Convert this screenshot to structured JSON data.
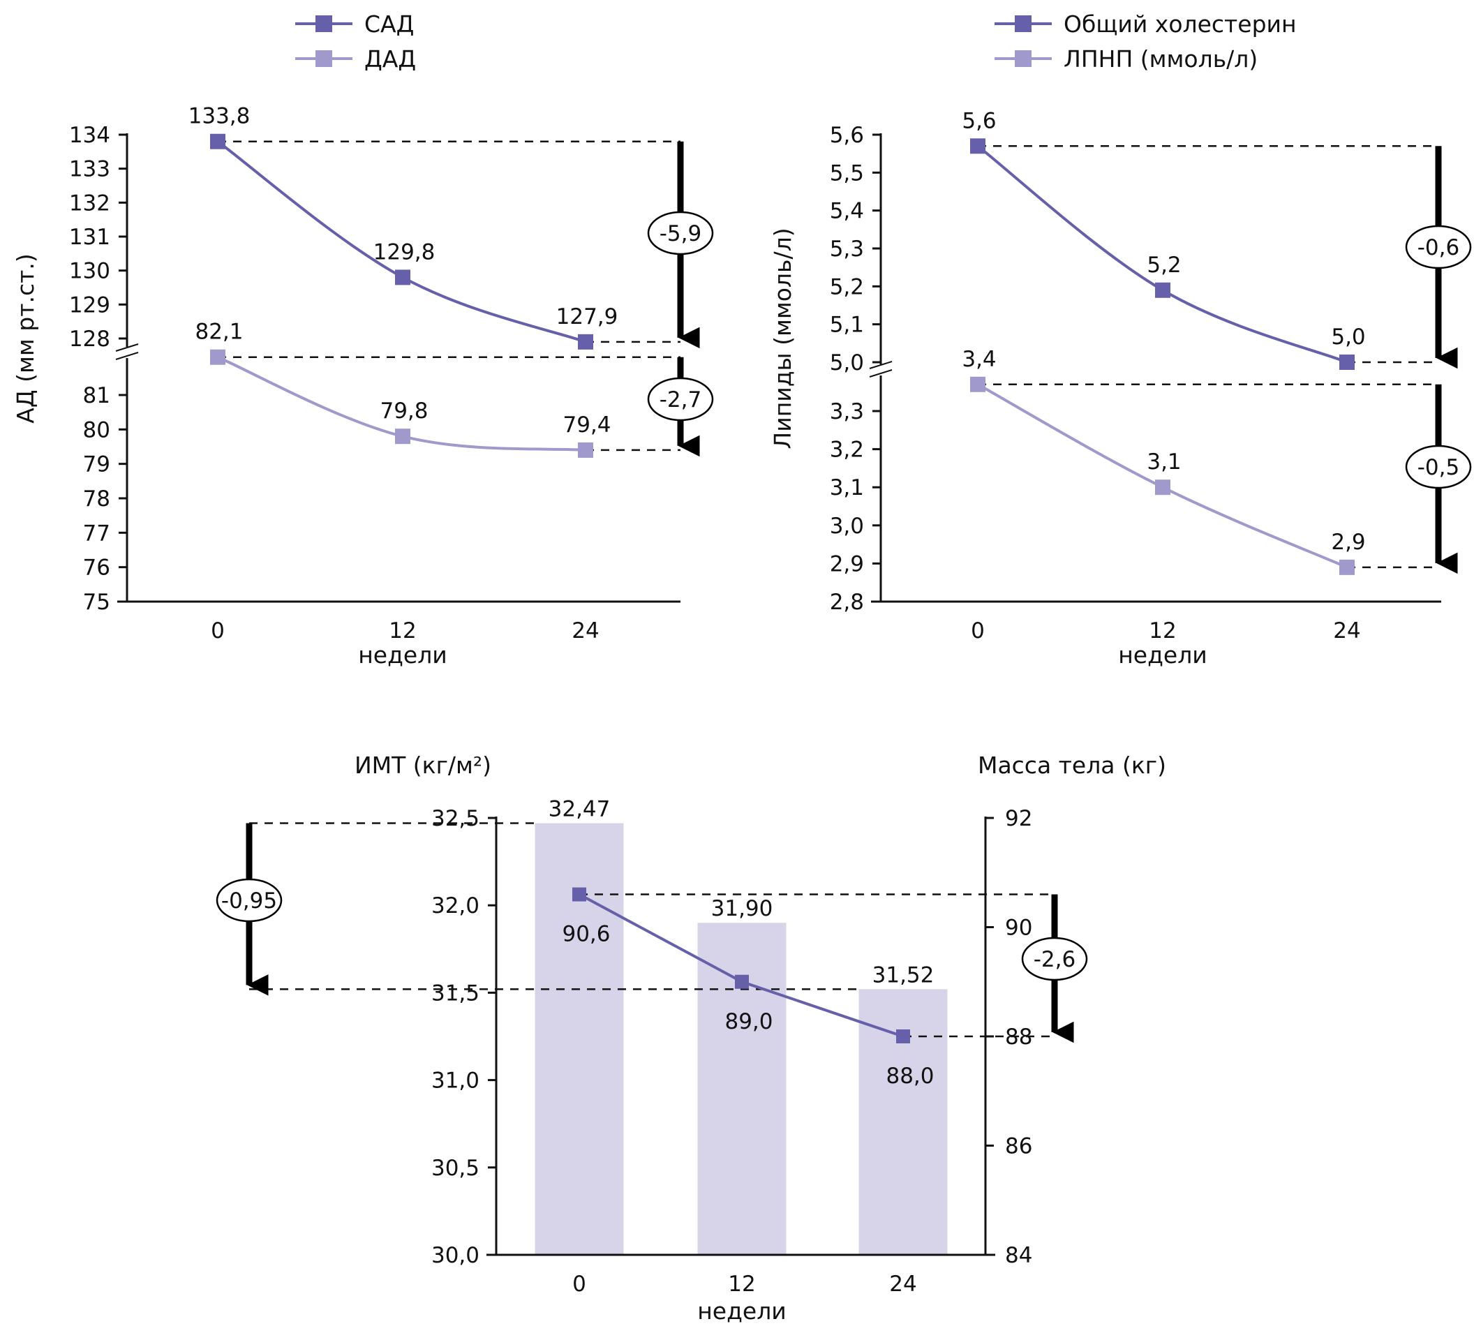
{
  "colors": {
    "series_dark": "#6660ab",
    "series_light": "#9f99cc",
    "bar_fill": "#d7d4ea",
    "axis": "#111111"
  },
  "chart_data": [
    {
      "id": "blood-pressure",
      "type": "line",
      "title": "",
      "xlabel": "недели",
      "ylabel": "АД (мм рт.ст.)",
      "categories": [
        "0",
        "12",
        "24"
      ],
      "axis_break": true,
      "upper_axis": {
        "ylim": [
          128,
          134
        ],
        "ticks": [
          "128",
          "129",
          "130",
          "131",
          "132",
          "133",
          "134"
        ]
      },
      "lower_axis": {
        "ylim": [
          75,
          81
        ],
        "ticks": [
          "75",
          "76",
          "77",
          "78",
          "79",
          "80",
          "81"
        ]
      },
      "legend": {
        "placement": "top",
        "entries": [
          "САД",
          "ДАД"
        ]
      },
      "series": [
        {
          "name": "САД",
          "segment": "upper",
          "color": "series_dark",
          "values": [
            133.8,
            129.8,
            127.9
          ],
          "labels": [
            "133,8",
            "129,8",
            "127,9"
          ]
        },
        {
          "name": "ДАД",
          "segment": "lower",
          "color": "series_light",
          "values": [
            82.1,
            79.8,
            79.4
          ],
          "labels": [
            "82,1",
            "79,8",
            "79,4"
          ]
        }
      ],
      "annotations": [
        {
          "series": "САД",
          "delta": "-5,9"
        },
        {
          "series": "ДАД",
          "delta": "-2,7"
        }
      ]
    },
    {
      "id": "lipids",
      "type": "line",
      "title": "",
      "xlabel": "недели",
      "ylabel": "Липиды (ммоль/л)",
      "categories": [
        "0",
        "12",
        "24"
      ],
      "axis_break": true,
      "upper_axis": {
        "ylim": [
          5.0,
          5.6
        ],
        "ticks": [
          "5,0",
          "5,1",
          "5,2",
          "5,3",
          "5,4",
          "5,5",
          "5,6"
        ]
      },
      "lower_axis": {
        "ylim": [
          2.8,
          3.3
        ],
        "ticks": [
          "2,8",
          "2,9",
          "3,0",
          "3,1",
          "3,2",
          "3,3"
        ]
      },
      "legend": {
        "placement": "top",
        "entries": [
          "Общий холестерин",
          "ЛПНП (ммоль/л)"
        ]
      },
      "series": [
        {
          "name": "Общий холестерин",
          "segment": "upper",
          "color": "series_dark",
          "values": [
            5.57,
            5.19,
            5.0
          ],
          "labels": [
            "5,6",
            "5,2",
            "5,0"
          ]
        },
        {
          "name": "ЛПНП (ммоль/л)",
          "segment": "lower",
          "color": "series_light",
          "values": [
            3.37,
            3.1,
            2.89
          ],
          "labels": [
            "3,4",
            "3,1",
            "2,9"
          ]
        }
      ],
      "annotations": [
        {
          "series": "Общий холестерин",
          "delta": "-0,6"
        },
        {
          "series": "ЛПНП (ммоль/л)",
          "delta": "-0,5"
        }
      ]
    },
    {
      "id": "bmi-weight",
      "type": "bar",
      "title": "",
      "xlabel": "недели",
      "categories": [
        "0",
        "12",
        "24"
      ],
      "left_axis": {
        "label": "ИМТ (кг/м²)",
        "ylim": [
          30.0,
          32.5
        ],
        "ticks": [
          "30,0",
          "30,5",
          "31,0",
          "31,5",
          "32,0",
          "32,5"
        ]
      },
      "right_axis": {
        "label": "Масса тела (кг)",
        "ylim": [
          84,
          92
        ],
        "ticks": [
          "84",
          "86",
          "88",
          "90",
          "92"
        ]
      },
      "series": [
        {
          "name": "ИМТ",
          "kind": "bar",
          "axis": "left",
          "color": "bar_fill",
          "values": [
            32.47,
            31.9,
            31.52
          ],
          "labels": [
            "32,47",
            "31,90",
            "31,52"
          ]
        },
        {
          "name": "Масса тела",
          "kind": "line",
          "axis": "right",
          "color": "series_dark",
          "values": [
            90.6,
            89.0,
            88.0
          ],
          "labels": [
            "90,6",
            "89,0",
            "88,0"
          ]
        }
      ],
      "annotations": [
        {
          "series": "ИМТ",
          "delta": "-0,95",
          "side": "left"
        },
        {
          "series": "Масса тела",
          "delta": "-2,6",
          "side": "right"
        }
      ]
    }
  ]
}
